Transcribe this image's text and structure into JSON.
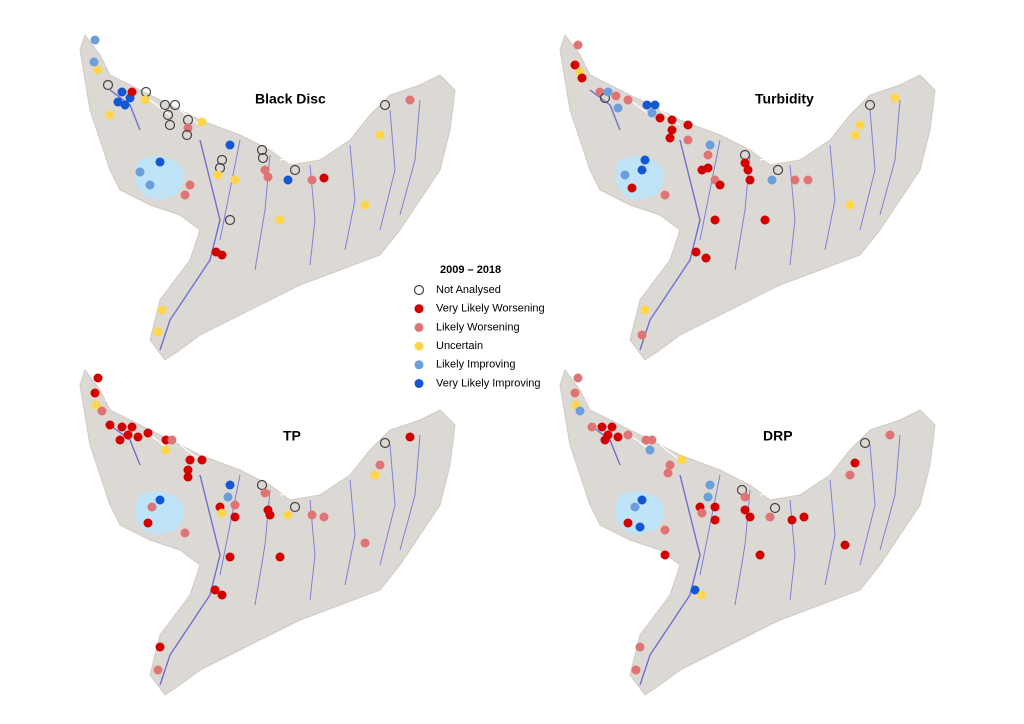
{
  "panels": [
    {
      "title": "Black Disc"
    },
    {
      "title": "Turbidity"
    },
    {
      "title": "TP"
    },
    {
      "title": "DRP"
    }
  ],
  "legend": {
    "title": "2009 – 2018",
    "items": [
      {
        "label": "Not Analysed",
        "color": "#444444",
        "hollow": true
      },
      {
        "label": "Very Likely Worsening",
        "color": "#d40000"
      },
      {
        "label": "Likely Worsening",
        "color": "#e07474"
      },
      {
        "label": "Uncertain",
        "color": "#ffd54a"
      },
      {
        "label": "Likely Improving",
        "color": "#6a9fdc"
      },
      {
        "label": "Very Likely Improving",
        "color": "#1257d4"
      }
    ]
  }
}
